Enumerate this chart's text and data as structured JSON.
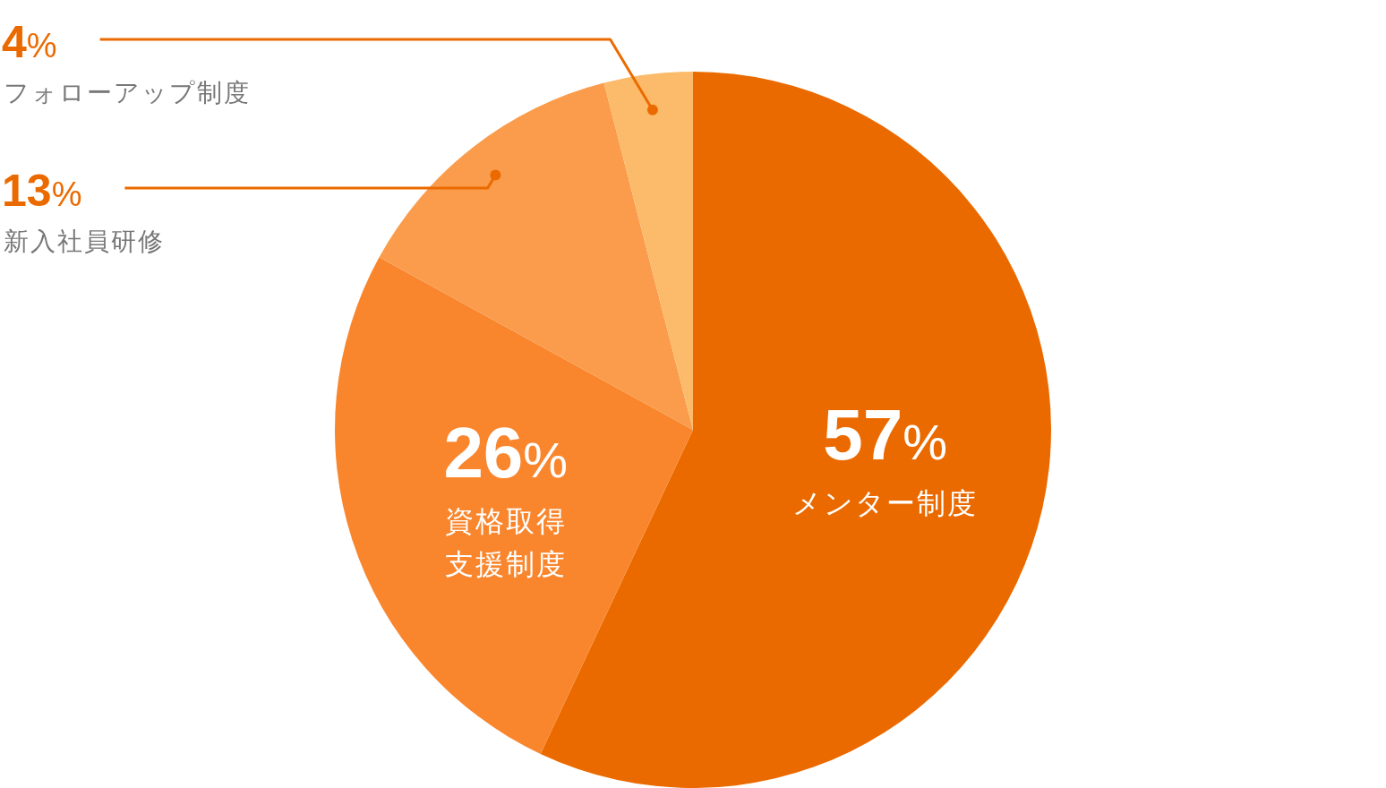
{
  "chart_data": {
    "type": "pie",
    "categories": [
      "メンター制度",
      "資格取得支援制度",
      "新入社員研修",
      "フォローアップ制度"
    ],
    "values": [
      57,
      26,
      13,
      4
    ],
    "colors": [
      "#eb6a00",
      "#f9862d",
      "#fa9c4b",
      "#fcbb6a"
    ],
    "value_labels": [
      "57%",
      "26%",
      "13%",
      "4%"
    ]
  }
}
